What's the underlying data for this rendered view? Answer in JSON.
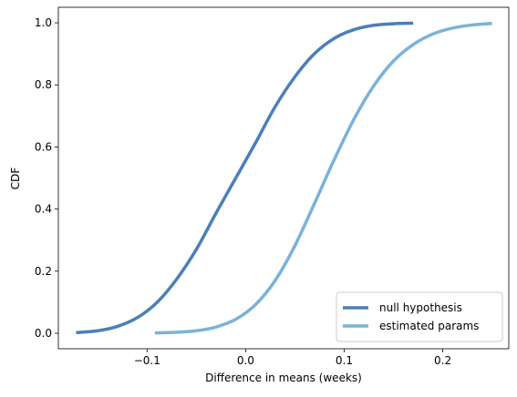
{
  "chart_data": {
    "type": "line",
    "title": "",
    "xlabel": "Difference in means (weeks)",
    "ylabel": "CDF",
    "xlim": [
      -0.19,
      0.267
    ],
    "ylim": [
      -0.05,
      1.05
    ],
    "x_ticks": [
      -0.1,
      0.0,
      0.1,
      0.2
    ],
    "x_tick_labels": [
      "−0.1",
      "0.0",
      "0.1",
      "0.2"
    ],
    "y_ticks": [
      0.0,
      0.2,
      0.4,
      0.6,
      0.8,
      1.0
    ],
    "y_tick_labels": [
      "0.0",
      "0.2",
      "0.4",
      "0.6",
      "0.8",
      "1.0"
    ],
    "grid": false,
    "legend_position": "bottom-right",
    "series": [
      {
        "name": "null hypothesis",
        "color": "#4c7fb8",
        "points": [
          [
            -0.172,
            0.002
          ],
          [
            -0.15,
            0.008
          ],
          [
            -0.13,
            0.022
          ],
          [
            -0.11,
            0.05
          ],
          [
            -0.09,
            0.099
          ],
          [
            -0.07,
            0.174
          ],
          [
            -0.05,
            0.27
          ],
          [
            -0.03,
            0.387
          ],
          [
            -0.01,
            0.5
          ],
          [
            0.01,
            0.613
          ],
          [
            0.03,
            0.73
          ],
          [
            0.05,
            0.826
          ],
          [
            0.07,
            0.901
          ],
          [
            0.09,
            0.95
          ],
          [
            0.11,
            0.978
          ],
          [
            0.13,
            0.992
          ],
          [
            0.15,
            0.997
          ],
          [
            0.17,
            0.999
          ]
        ]
      },
      {
        "name": "estimated params",
        "color": "#7bb2d9",
        "points": [
          [
            -0.092,
            0.001
          ],
          [
            -0.07,
            0.003
          ],
          [
            -0.05,
            0.008
          ],
          [
            -0.03,
            0.02
          ],
          [
            -0.01,
            0.045
          ],
          [
            0.01,
            0.092
          ],
          [
            0.03,
            0.17
          ],
          [
            0.05,
            0.282
          ],
          [
            0.07,
            0.419
          ],
          [
            0.09,
            0.56
          ],
          [
            0.11,
            0.69
          ],
          [
            0.13,
            0.797
          ],
          [
            0.15,
            0.877
          ],
          [
            0.17,
            0.93
          ],
          [
            0.19,
            0.964
          ],
          [
            0.21,
            0.983
          ],
          [
            0.23,
            0.993
          ],
          [
            0.25,
            0.998
          ]
        ]
      }
    ]
  }
}
